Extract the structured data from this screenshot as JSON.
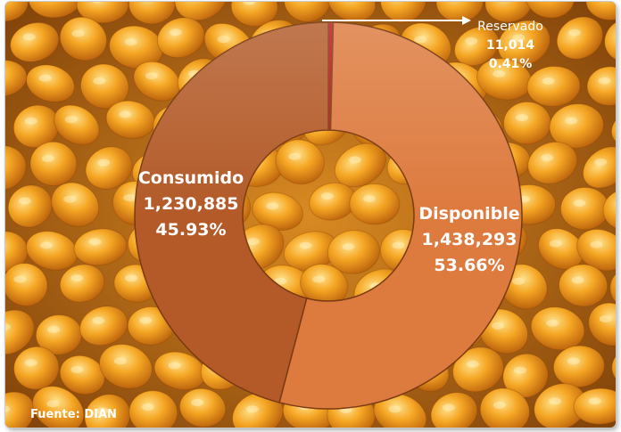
{
  "chart_data": {
    "type": "pie",
    "variant": "donut",
    "title": "",
    "slices": [
      {
        "label": "Reservado",
        "value": 11014,
        "value_text": "11,014",
        "percent_text": "0.41%",
        "percent": 0.41,
        "color": "#c0141a"
      },
      {
        "label": "Disponible",
        "value": 1438293,
        "value_text": "1,438,293",
        "percent_text": "53.66%",
        "percent": 53.66,
        "color": "#dd7a3e"
      },
      {
        "label": "Consumido",
        "value": 1230885,
        "value_text": "1,230,885",
        "percent_text": "45.93%",
        "percent": 45.93,
        "color": "#b35a28"
      }
    ],
    "legend": "none",
    "source": "Fuente: DIAN",
    "background": "corn-kernels-photo"
  }
}
